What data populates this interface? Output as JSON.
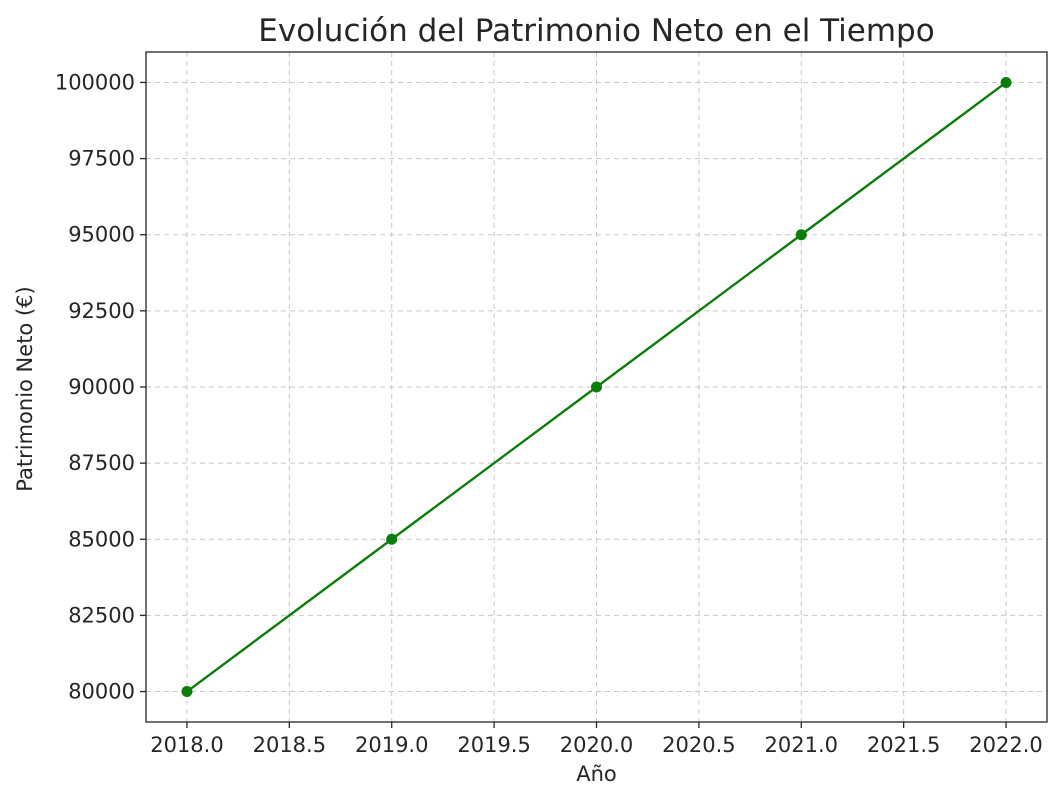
{
  "chart_data": {
    "type": "line",
    "title": "Evolución del Patrimonio Neto en el Tiempo",
    "xlabel": "Año",
    "ylabel": "Patrimonio Neto (€)",
    "x": [
      2018,
      2019,
      2020,
      2021,
      2022
    ],
    "series": [
      {
        "values": [
          80000,
          85000,
          90000,
          95000,
          100000
        ],
        "color": "#0a7d0a",
        "marker": "circle"
      }
    ],
    "xlim": [
      2017.8,
      2022.2
    ],
    "ylim": [
      79000,
      101000
    ],
    "x_ticks": [
      2018.0,
      2018.5,
      2019.0,
      2019.5,
      2020.0,
      2020.5,
      2021.0,
      2021.5,
      2022.0
    ],
    "x_tick_labels": [
      "2018.0",
      "2018.5",
      "2019.0",
      "2019.5",
      "2020.0",
      "2020.5",
      "2021.0",
      "2021.5",
      "2022.0"
    ],
    "y_ticks": [
      80000,
      82500,
      85000,
      87500,
      90000,
      92500,
      95000,
      97500,
      100000
    ],
    "y_tick_labels": [
      "80000",
      "82500",
      "85000",
      "87500",
      "90000",
      "92500",
      "95000",
      "97500",
      "100000"
    ],
    "grid": true,
    "legend": false
  }
}
